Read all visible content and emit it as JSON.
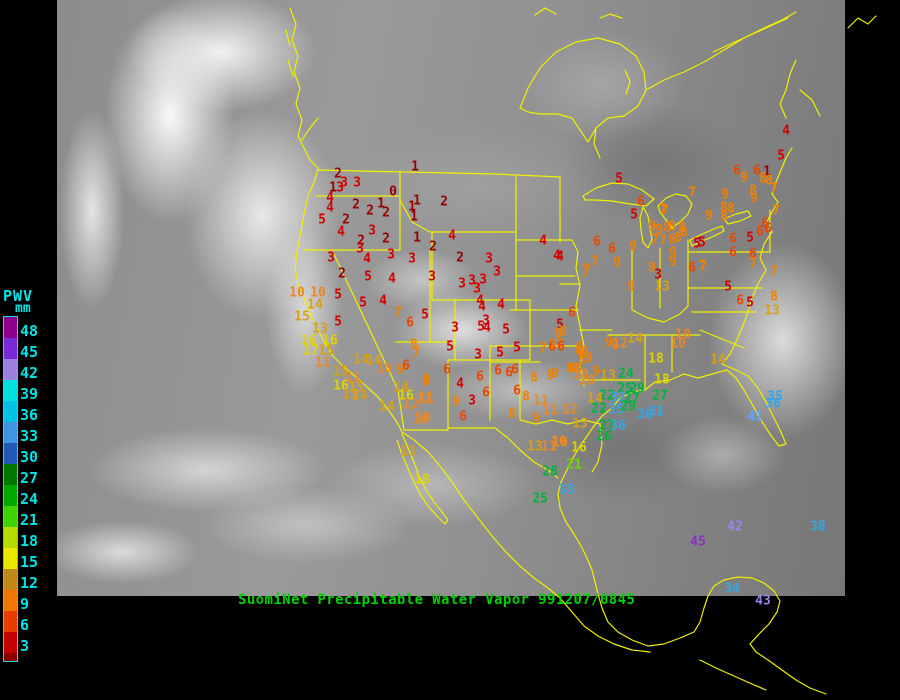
{
  "header": {
    "title": "SuomiNet Precipitable Water Vapor 991207/0845",
    "title_color": "#00d400"
  },
  "legend": {
    "title": "PWV",
    "unit": "mm",
    "text_color": "#00e5e5",
    "cap_color": "#8a0000",
    "entries": [
      {
        "value": "48",
        "color": "#8e008e"
      },
      {
        "value": "45",
        "color": "#7a2ad8"
      },
      {
        "value": "42",
        "color": "#9a80e0"
      },
      {
        "value": "39",
        "color": "#00e0e0"
      },
      {
        "value": "36",
        "color": "#00c2e6"
      },
      {
        "value": "33",
        "color": "#3e96e0"
      },
      {
        "value": "30",
        "color": "#2058b4"
      },
      {
        "value": "27",
        "color": "#007800"
      },
      {
        "value": "24",
        "color": "#00a800"
      },
      {
        "value": "21",
        "color": "#3ed400"
      },
      {
        "value": "18",
        "color": "#b4dc00"
      },
      {
        "value": "15",
        "color": "#e8e800"
      },
      {
        "value": "12",
        "color": "#c08818"
      },
      {
        "value": "9",
        "color": "#f07800"
      },
      {
        "value": "6",
        "color": "#e83c00"
      },
      {
        "value": "3",
        "color": "#c40000"
      }
    ]
  },
  "map": {
    "outline_color": "#f0f000",
    "background_color": "#000000"
  },
  "palette": [
    {
      "max": 2,
      "color": "#980000"
    },
    {
      "max": 5,
      "color": "#d40000"
    },
    {
      "max": 6,
      "color": "#e84800"
    },
    {
      "max": 9,
      "color": "#f08000"
    },
    {
      "max": 12,
      "color": "#e88828"
    },
    {
      "max": 15,
      "color": "#d8a018"
    },
    {
      "max": 18,
      "color": "#e0d400"
    },
    {
      "max": 21,
      "color": "#70d800"
    },
    {
      "max": 29,
      "color": "#00b43c"
    },
    {
      "max": 38,
      "color": "#30a8e8"
    },
    {
      "max": 41,
      "color": "#58a8ff"
    },
    {
      "max": 43,
      "color": "#9b84e8"
    },
    {
      "max": 99,
      "color": "#8e2cc8"
    }
  ],
  "stations": [
    [
      1,
      415,
      167
    ],
    [
      2,
      338,
      174
    ],
    [
      3,
      344,
      183
    ],
    [
      3,
      357,
      183
    ],
    [
      1,
      333,
      188
    ],
    [
      3,
      340,
      188
    ],
    [
      0,
      393,
      192
    ],
    [
      4,
      330,
      198
    ],
    [
      4,
      330,
      208
    ],
    [
      1,
      417,
      201
    ],
    [
      2,
      444,
      202
    ],
    [
      2,
      356,
      205
    ],
    [
      1,
      381,
      204
    ],
    [
      2,
      370,
      211
    ],
    [
      2,
      386,
      213
    ],
    [
      1,
      412,
      207
    ],
    [
      1,
      414,
      217
    ],
    [
      5,
      322,
      220
    ],
    [
      2,
      346,
      220
    ],
    [
      4,
      341,
      232
    ],
    [
      3,
      372,
      231
    ],
    [
      2,
      361,
      241
    ],
    [
      3,
      360,
      249
    ],
    [
      2,
      386,
      239
    ],
    [
      1,
      417,
      238
    ],
    [
      2,
      433,
      247
    ],
    [
      4,
      452,
      236
    ],
    [
      3,
      331,
      258
    ],
    [
      4,
      367,
      259
    ],
    [
      3,
      391,
      255
    ],
    [
      3,
      412,
      259
    ],
    [
      2,
      342,
      274
    ],
    [
      5,
      368,
      277
    ],
    [
      4,
      392,
      279
    ],
    [
      3,
      432,
      277
    ],
    [
      4,
      543,
      241
    ],
    [
      4,
      557,
      256
    ],
    [
      2,
      460,
      258
    ],
    [
      3,
      489,
      259
    ],
    [
      3,
      497,
      272
    ],
    [
      7,
      587,
      270
    ],
    [
      3,
      462,
      284
    ],
    [
      3,
      472,
      281
    ],
    [
      3,
      483,
      280
    ],
    [
      3,
      477,
      289
    ],
    [
      4,
      480,
      301
    ],
    [
      4,
      482,
      307
    ],
    [
      4,
      501,
      305
    ],
    [
      6,
      572,
      313
    ],
    [
      3,
      486,
      321
    ],
    [
      3,
      455,
      328
    ],
    [
      5,
      481,
      327
    ],
    [
      4,
      487,
      328
    ],
    [
      5,
      506,
      330
    ],
    [
      5,
      560,
      325
    ],
    [
      8,
      563,
      332
    ],
    [
      5,
      450,
      347
    ],
    [
      3,
      478,
      355
    ],
    [
      5,
      500,
      353
    ],
    [
      5,
      517,
      348
    ],
    [
      7,
      543,
      349
    ],
    [
      6,
      552,
      347
    ],
    [
      7,
      561,
      345
    ],
    [
      8,
      580,
      348
    ],
    [
      9,
      581,
      354
    ],
    [
      6,
      447,
      370
    ],
    [
      9,
      426,
      382
    ],
    [
      4,
      460,
      384
    ],
    [
      6,
      480,
      377
    ],
    [
      6,
      498,
      371
    ],
    [
      6,
      509,
      373
    ],
    [
      6,
      515,
      370
    ],
    [
      8,
      534,
      378
    ],
    [
      9,
      555,
      374
    ],
    [
      8,
      572,
      369
    ],
    [
      6,
      486,
      393
    ],
    [
      3,
      472,
      401
    ],
    [
      9,
      456,
      402
    ],
    [
      11,
      426,
      398
    ],
    [
      10,
      421,
      420
    ],
    [
      6,
      463,
      417
    ],
    [
      6,
      517,
      391
    ],
    [
      8,
      526,
      397
    ],
    [
      11,
      541,
      401
    ],
    [
      8,
      512,
      414
    ],
    [
      9,
      536,
      419
    ],
    [
      11,
      550,
      411
    ],
    [
      12,
      570,
      410
    ],
    [
      13,
      535,
      447
    ],
    [
      11,
      549,
      447
    ],
    [
      10,
      560,
      443
    ],
    [
      28,
      550,
      472
    ],
    [
      21,
      574,
      465
    ],
    [
      33,
      566,
      490
    ],
    [
      25,
      540,
      499
    ],
    [
      18,
      422,
      480
    ],
    [
      13,
      408,
      452
    ],
    [
      10,
      297,
      293
    ],
    [
      10,
      318,
      293
    ],
    [
      5,
      338,
      295
    ],
    [
      14,
      315,
      305
    ],
    [
      15,
      302,
      317
    ],
    [
      5,
      363,
      303
    ],
    [
      4,
      383,
      301
    ],
    [
      7,
      398,
      313
    ],
    [
      6,
      410,
      323
    ],
    [
      5,
      425,
      315
    ],
    [
      5,
      338,
      322
    ],
    [
      13,
      320,
      329
    ],
    [
      16,
      309,
      341
    ],
    [
      16,
      330,
      341
    ],
    [
      17,
      311,
      351
    ],
    [
      15,
      326,
      351
    ],
    [
      8,
      414,
      345
    ],
    [
      7,
      416,
      354
    ],
    [
      11,
      323,
      363
    ],
    [
      14,
      361,
      360
    ],
    [
      14,
      374,
      361
    ],
    [
      10,
      384,
      369
    ],
    [
      9,
      400,
      370
    ],
    [
      6,
      406,
      366
    ],
    [
      15,
      341,
      372
    ],
    [
      11,
      353,
      378
    ],
    [
      9,
      426,
      380
    ],
    [
      16,
      341,
      386
    ],
    [
      15,
      356,
      388
    ],
    [
      14,
      401,
      388
    ],
    [
      16,
      406,
      396
    ],
    [
      13,
      350,
      395
    ],
    [
      14,
      360,
      396
    ],
    [
      14,
      387,
      407
    ],
    [
      12,
      411,
      405
    ],
    [
      11,
      425,
      400
    ],
    [
      10,
      423,
      418
    ],
    [
      5,
      619,
      179
    ],
    [
      6,
      641,
      202
    ],
    [
      7,
      692,
      193
    ],
    [
      9,
      725,
      195
    ],
    [
      5,
      634,
      215
    ],
    [
      7,
      665,
      211
    ],
    [
      9,
      709,
      216
    ],
    [
      7,
      663,
      210
    ],
    [
      9,
      652,
      227
    ],
    [
      9,
      659,
      230
    ],
    [
      8,
      667,
      228
    ],
    [
      8,
      672,
      227
    ],
    [
      8,
      682,
      228
    ],
    [
      8,
      684,
      233
    ],
    [
      8,
      678,
      238
    ],
    [
      8,
      672,
      240
    ],
    [
      7,
      655,
      240
    ],
    [
      7,
      663,
      241
    ],
    [
      5,
      697,
      244
    ],
    [
      5,
      702,
      243
    ],
    [
      6,
      597,
      242
    ],
    [
      6,
      612,
      249
    ],
    [
      9,
      633,
      247
    ],
    [
      9,
      673,
      253
    ],
    [
      4,
      560,
      257
    ],
    [
      7,
      595,
      262
    ],
    [
      7,
      586,
      273
    ],
    [
      9,
      617,
      263
    ],
    [
      9,
      631,
      287
    ],
    [
      13,
      662,
      287
    ],
    [
      9,
      652,
      268
    ],
    [
      3,
      658,
      275
    ],
    [
      6,
      692,
      268
    ],
    [
      7,
      703,
      267
    ],
    [
      9,
      673,
      262
    ],
    [
      4,
      786,
      131
    ],
    [
      5,
      781,
      156
    ],
    [
      6,
      757,
      171
    ],
    [
      1,
      767,
      172
    ],
    [
      6,
      737,
      171
    ],
    [
      9,
      744,
      178
    ],
    [
      8,
      763,
      179
    ],
    [
      8,
      769,
      181
    ],
    [
      8,
      753,
      191
    ],
    [
      7,
      774,
      189
    ],
    [
      9,
      754,
      199
    ],
    [
      7,
      776,
      211
    ],
    [
      8,
      724,
      208
    ],
    [
      8,
      731,
      209
    ],
    [
      8,
      724,
      217
    ],
    [
      6,
      765,
      224
    ],
    [
      6,
      768,
      229
    ],
    [
      6,
      760,
      232
    ],
    [
      6,
      733,
      239
    ],
    [
      5,
      750,
      238
    ],
    [
      6,
      733,
      253
    ],
    [
      6,
      753,
      254
    ],
    [
      7,
      753,
      264
    ],
    [
      7,
      774,
      272
    ],
    [
      7,
      703,
      266
    ],
    [
      5,
      728,
      287
    ],
    [
      8,
      774,
      297
    ],
    [
      6,
      740,
      301
    ],
    [
      5,
      750,
      303
    ],
    [
      13,
      772,
      311
    ],
    [
      8,
      558,
      334
    ],
    [
      7,
      553,
      346
    ],
    [
      6,
      561,
      347
    ],
    [
      8,
      579,
      351
    ],
    [
      9,
      585,
      353
    ],
    [
      9,
      589,
      359
    ],
    [
      8,
      582,
      360
    ],
    [
      9,
      609,
      343
    ],
    [
      9,
      615,
      346
    ],
    [
      12,
      620,
      344
    ],
    [
      14,
      635,
      339
    ],
    [
      10,
      683,
      335
    ],
    [
      10,
      678,
      344
    ],
    [
      18,
      656,
      359
    ],
    [
      14,
      718,
      360
    ],
    [
      8,
      570,
      369
    ],
    [
      8,
      578,
      369
    ],
    [
      10,
      581,
      375
    ],
    [
      9,
      596,
      372
    ],
    [
      13,
      608,
      376
    ],
    [
      9,
      550,
      376
    ],
    [
      10,
      587,
      381
    ],
    [
      24,
      626,
      374
    ],
    [
      18,
      662,
      380
    ],
    [
      22,
      607,
      396
    ],
    [
      25,
      625,
      389
    ],
    [
      29,
      637,
      389
    ],
    [
      32,
      618,
      398
    ],
    [
      27,
      632,
      399
    ],
    [
      27,
      660,
      396
    ],
    [
      14,
      595,
      399
    ],
    [
      22,
      599,
      409
    ],
    [
      35,
      616,
      410
    ],
    [
      29,
      628,
      407
    ],
    [
      36,
      645,
      415
    ],
    [
      31,
      656,
      412
    ],
    [
      13,
      580,
      424
    ],
    [
      27,
      607,
      426
    ],
    [
      36,
      618,
      426
    ],
    [
      26,
      604,
      437
    ],
    [
      10,
      559,
      442
    ],
    [
      16,
      579,
      448
    ],
    [
      35,
      775,
      397
    ],
    [
      36,
      773,
      404
    ],
    [
      41,
      755,
      417
    ],
    [
      42,
      735,
      527
    ],
    [
      45,
      698,
      542
    ],
    [
      38,
      818,
      527
    ],
    [
      34,
      732,
      589
    ],
    [
      43,
      763,
      601
    ]
  ]
}
